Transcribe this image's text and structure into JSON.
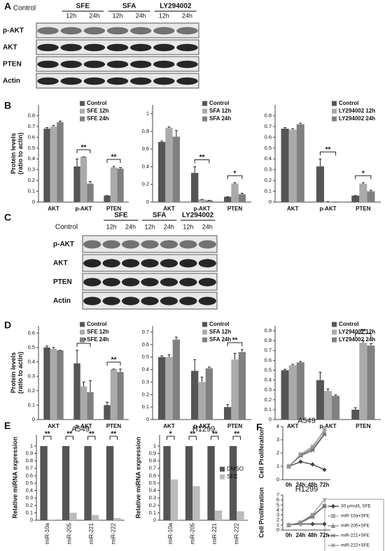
{
  "panel_labels": [
    "A",
    "B",
    "C",
    "D",
    "E",
    "F"
  ],
  "blots": [
    {
      "groups": [
        "Control",
        "SFE",
        "SFA",
        "LY294002"
      ],
      "times": [
        "12h",
        "24h",
        "12h",
        "24h",
        "12h",
        "24h"
      ],
      "rows": [
        "p-AKT",
        "AKT",
        "PTEN",
        "Actin"
      ]
    },
    {
      "groups": [
        "Control",
        "SFE",
        "SFA",
        "LY294002"
      ],
      "times": [
        "12h",
        "24h",
        "12h",
        "24h",
        "12h",
        "24h"
      ],
      "rows": [
        "p-AKT",
        "AKT",
        "PTEN",
        "Actin"
      ]
    }
  ],
  "chart_data": [
    {
      "type": "bar",
      "ylabel": "Protein levels\n(ratio to actin)",
      "categories": [
        "AKT",
        "p-AKT",
        "PTEN"
      ],
      "ylim": [
        0,
        0.9
      ],
      "yticks": [
        0,
        0.1,
        0.2,
        0.3,
        0.4,
        0.5,
        0.6,
        0.7,
        0.8
      ],
      "legend": "upper right",
      "series": [
        {
          "name": "Control",
          "color": "#555555",
          "values": [
            0.68,
            0.33,
            0.06
          ],
          "errors": [
            0.01,
            0.07,
            0.0
          ]
        },
        {
          "name": "SFE 12h",
          "color": "#aaaaaa",
          "values": [
            0.7,
            0.42,
            0.32
          ],
          "errors": [
            0.01,
            0.0,
            0.01
          ]
        },
        {
          "name": "SFE 24h",
          "color": "#808080",
          "values": [
            0.74,
            0.17,
            0.31
          ],
          "errors": [
            0.01,
            0.02,
            0.01
          ]
        }
      ],
      "significance": [
        null,
        "**",
        "**"
      ]
    },
    {
      "type": "bar",
      "categories": [
        "AKT",
        "p-AKT",
        "PTEN"
      ],
      "ylim": [
        0,
        1.1
      ],
      "yticks": [
        0,
        0.2,
        0.4,
        0.6,
        0.8,
        1
      ],
      "legend": "upper right",
      "series": [
        {
          "name": "Control",
          "color": "#555555",
          "values": [
            0.68,
            0.33,
            0.06
          ],
          "errors": [
            0.01,
            0.07,
            0.0
          ]
        },
        {
          "name": "SFA 12h",
          "color": "#aaaaaa",
          "values": [
            0.84,
            0.03,
            0.21
          ],
          "errors": [
            0.01,
            0.0,
            0.01
          ]
        },
        {
          "name": "SFA 24h",
          "color": "#808080",
          "values": [
            0.74,
            0.02,
            0.09
          ],
          "errors": [
            0.07,
            0.0,
            0.01
          ]
        }
      ],
      "significance": [
        null,
        "**",
        "*"
      ]
    },
    {
      "type": "bar",
      "categories": [
        "AKT",
        "p-AKT",
        "PTEN"
      ],
      "ylim": [
        0,
        0.9
      ],
      "yticks": [
        0,
        0.1,
        0.2,
        0.3,
        0.4,
        0.5,
        0.6,
        0.7,
        0.8
      ],
      "legend": "upper right",
      "series": [
        {
          "name": "Control",
          "color": "#555555",
          "values": [
            0.68,
            0.33,
            0.06
          ],
          "errors": [
            0.01,
            0.07,
            0.0
          ]
        },
        {
          "name": "LY294002 12h",
          "color": "#aaaaaa",
          "values": [
            0.67,
            0.005,
            0.17
          ],
          "errors": [
            0.01,
            0.0,
            0.01
          ]
        },
        {
          "name": "LY294002 24h",
          "color": "#808080",
          "values": [
            0.72,
            0.0,
            0.1
          ],
          "errors": [
            0.01,
            0.0,
            0.01
          ]
        }
      ],
      "significance": [
        null,
        "**",
        "*"
      ]
    },
    {
      "type": "bar",
      "ylabel": "Protein levels\n(ratio to actin)",
      "categories": [
        "AKT",
        "p-AKT",
        "PTEN"
      ],
      "ylim": [
        0,
        0.65
      ],
      "yticks": [
        0,
        0.1,
        0.2,
        0.3,
        0.4,
        0.5,
        0.6
      ],
      "legend": "upper right",
      "series": [
        {
          "name": "Control",
          "color": "#555555",
          "values": [
            0.5,
            0.39,
            0.1
          ],
          "errors": [
            0.01,
            0.09,
            0.02
          ]
        },
        {
          "name": "SFE 12h",
          "color": "#aaaaaa",
          "values": [
            0.49,
            0.23,
            0.35
          ],
          "errors": [
            0.01,
            0.03,
            0.0
          ]
        },
        {
          "name": "SFE 24h",
          "color": "#808080",
          "values": [
            0.48,
            0.19,
            0.33
          ],
          "errors": [
            0.0,
            0.08,
            0.02
          ]
        }
      ],
      "significance": [
        null,
        "**",
        "**"
      ]
    },
    {
      "type": "bar",
      "categories": [
        "AKT",
        "p-AKT",
        "PTEN"
      ],
      "ylim": [
        0,
        0.75
      ],
      "yticks": [
        0,
        0.1,
        0.2,
        0.3,
        0.4,
        0.5,
        0.6,
        0.7
      ],
      "legend": "upper right",
      "series": [
        {
          "name": "Control",
          "color": "#555555",
          "values": [
            0.5,
            0.39,
            0.1
          ],
          "errors": [
            0.01,
            0.09,
            0.02
          ]
        },
        {
          "name": "SFA 12h",
          "color": "#aaaaaa",
          "values": [
            0.5,
            0.3,
            0.48
          ],
          "errors": [
            0.02,
            0.04,
            0.05
          ]
        },
        {
          "name": "SFA 24h",
          "color": "#808080",
          "values": [
            0.64,
            0.41,
            0.54
          ],
          "errors": [
            0.02,
            0.01,
            0.02
          ]
        }
      ],
      "significance": [
        null,
        null,
        "**"
      ]
    },
    {
      "type": "bar",
      "categories": [
        "AKT",
        "p-AKT",
        "PTEN"
      ],
      "ylim": [
        0,
        0.95
      ],
      "yticks": [
        0,
        0.1,
        0.2,
        0.3,
        0.4,
        0.5,
        0.6,
        0.7,
        0.8,
        0.9
      ],
      "legend": "upper right",
      "series": [
        {
          "name": "Control",
          "color": "#555555",
          "values": [
            0.5,
            0.4,
            0.1
          ],
          "errors": [
            0.01,
            0.08,
            0.02
          ]
        },
        {
          "name": "LY294002 12h",
          "color": "#aaaaaa",
          "values": [
            0.55,
            0.29,
            0.78
          ],
          "errors": [
            0.01,
            0.02,
            0.02
          ]
        },
        {
          "name": "LY294002 24h",
          "color": "#808080",
          "values": [
            0.58,
            0.24,
            0.75
          ],
          "errors": [
            0.01,
            0.01,
            0.02
          ]
        }
      ],
      "significance": [
        null,
        null,
        "**"
      ]
    },
    {
      "type": "bar",
      "title": "A549",
      "ylabel": "Relative miRNA expression",
      "categories": [
        "miR-10a",
        "miR-205",
        "miR-221",
        "miR-222"
      ],
      "ylim": [
        0,
        1.15
      ],
      "yticks": [
        0,
        0.1,
        0.2,
        0.3,
        0.4,
        0.5,
        0.6,
        0.7,
        0.8,
        0.9,
        1
      ],
      "x_label_rotation": -90,
      "series": [
        {
          "color": "#555555",
          "values": [
            1,
            1,
            1,
            1
          ]
        },
        {
          "color": "#bbbbbb",
          "values": [
            0.01,
            0.1,
            0.07,
            0.03
          ]
        }
      ],
      "significance": [
        "**",
        "**",
        "**",
        "**"
      ]
    },
    {
      "type": "bar",
      "title": "H1299",
      "ylabel": "Relative miRNA expression",
      "categories": [
        "miR-10a",
        "miR-205",
        "miR-221",
        "miR-222"
      ],
      "ylim": [
        0,
        1.15
      ],
      "yticks": [
        0,
        0.1,
        0.2,
        0.3,
        0.4,
        0.5,
        0.6,
        0.7,
        0.8,
        0.9,
        1
      ],
      "x_label_rotation": -90,
      "legend": "center right",
      "series": [
        {
          "name": "DMSO",
          "color": "#555555",
          "values": [
            1,
            1,
            1,
            1
          ]
        },
        {
          "name": "SFE",
          "color": "#bbbbbb",
          "values": [
            0.55,
            0.46,
            0.13,
            0.12
          ]
        }
      ],
      "significance": [
        "*",
        "**",
        "**",
        "**"
      ]
    },
    {
      "type": "line",
      "title": "A549",
      "ylabel": "Cell Proliferation",
      "categories": [
        "0h",
        "24h",
        "48h",
        "72h"
      ],
      "ylim": [
        0,
        4
      ],
      "yticks": [
        0,
        1,
        2,
        3,
        4
      ],
      "legend": "outside lower right",
      "series": [
        {
          "name": "30 μmol/L SFE",
          "color": "#444444",
          "marker": "diamond",
          "values": [
            1,
            1.35,
            1.15,
            0.75
          ]
        },
        {
          "name": "miR-10a+SFE",
          "color": "#b0b0b0",
          "marker": "square",
          "values": [
            1,
            1.9,
            2.4,
            3.8
          ]
        },
        {
          "name": "miR-205+SFE",
          "color": "#8c8c8c",
          "marker": "triangle",
          "values": [
            1,
            1.85,
            2.3,
            3.5
          ]
        },
        {
          "name": "miR-221+SFE",
          "color": "#666666",
          "marker": "x",
          "values": [
            1,
            1.8,
            2.2,
            3.4
          ]
        },
        {
          "name": "miR-222+SFE",
          "color": "#9a9a9a",
          "marker": "star",
          "values": [
            1,
            1.9,
            2.5,
            3.7
          ]
        }
      ]
    },
    {
      "type": "line",
      "title": "H1299",
      "ylabel": "Cell Proliferation",
      "categories": [
        "0h",
        "24h",
        "48h",
        "72h"
      ],
      "ylim": [
        0,
        7
      ],
      "yticks": [
        0,
        1,
        2,
        3,
        4,
        5,
        6,
        7
      ],
      "series": [
        {
          "color": "#444444",
          "marker": "diamond",
          "values": [
            1,
            1.2,
            1.2,
            1.2
          ]
        },
        {
          "color": "#b0b0b0",
          "marker": "square",
          "values": [
            1,
            1.4,
            2.6,
            4.8
          ]
        },
        {
          "color": "#8c8c8c",
          "marker": "triangle",
          "values": [
            1,
            1.5,
            2.8,
            4.9
          ]
        },
        {
          "color": "#666666",
          "marker": "x",
          "values": [
            1,
            1.5,
            2.9,
            4.8
          ]
        },
        {
          "color": "#9a9a9a",
          "marker": "star",
          "values": [
            1,
            1.6,
            3.1,
            6.1
          ]
        }
      ]
    }
  ]
}
